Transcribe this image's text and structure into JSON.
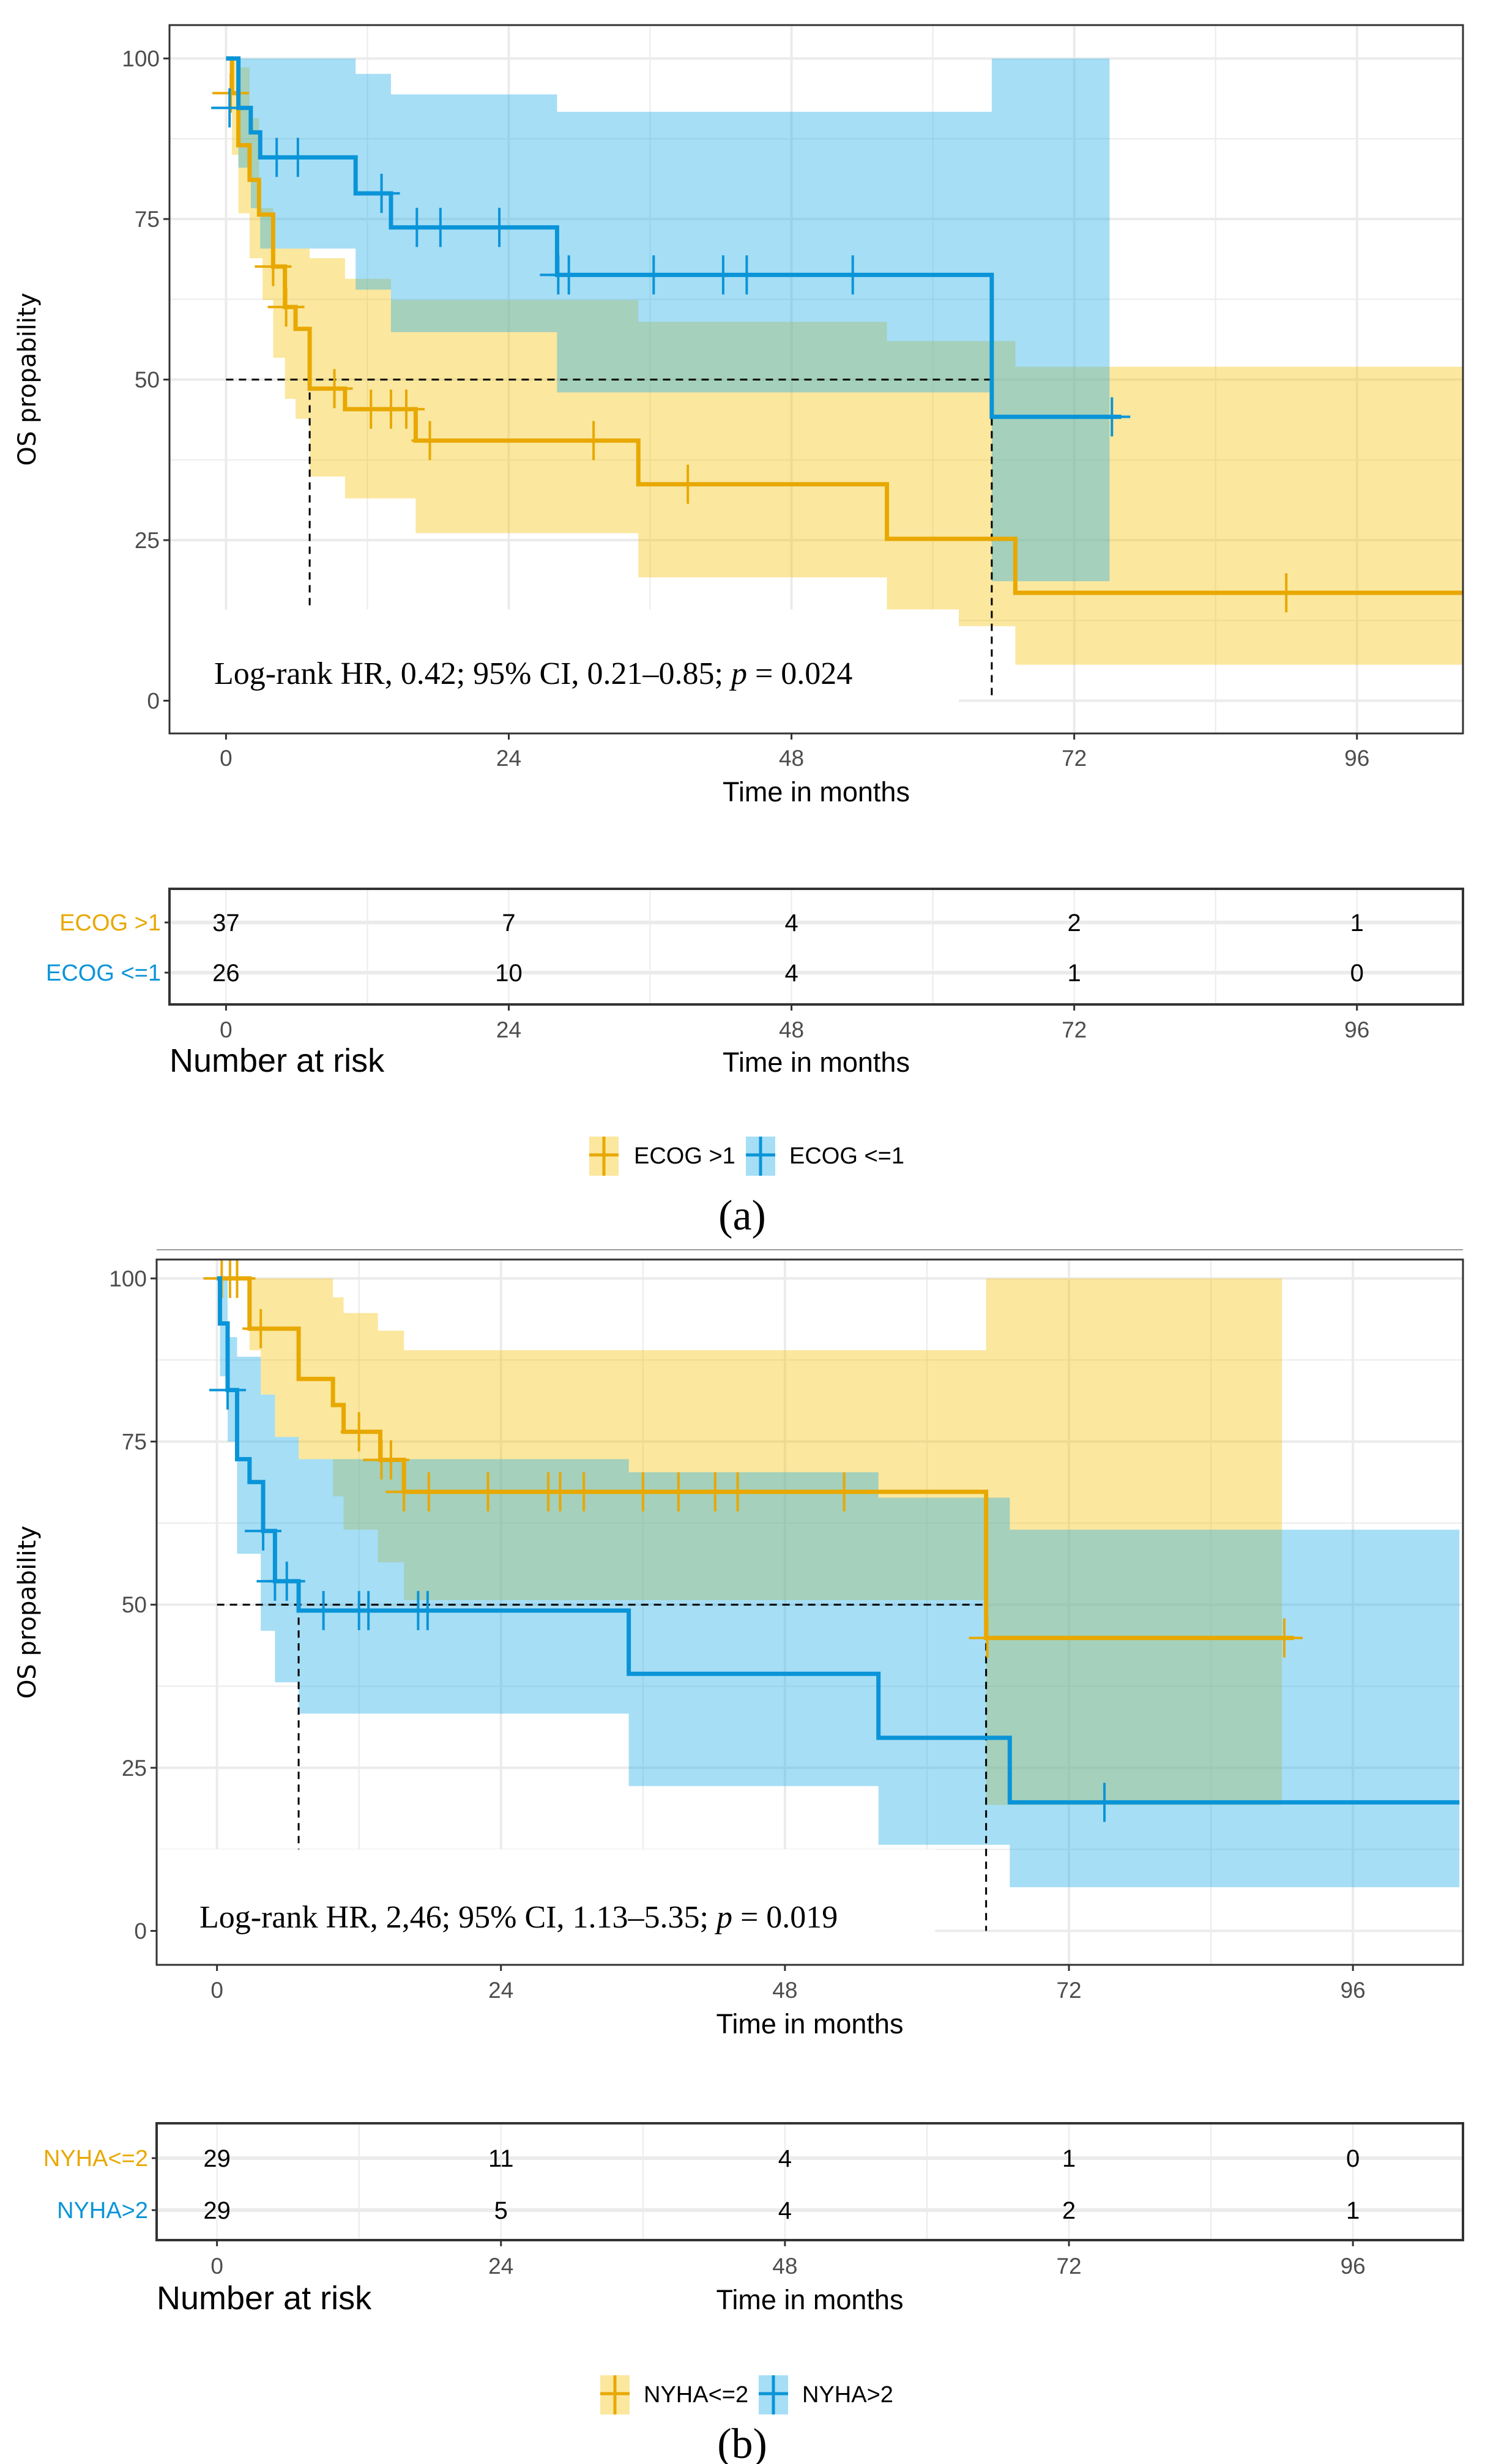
{
  "colors": {
    "orange_line": "#E8A800",
    "orange_fill": "#F5C518",
    "blue_line": "#0A94D8",
    "blue_fill": "#2BB0E8",
    "grid": "#EBEBEB"
  },
  "chart_data": [
    {
      "type": "line",
      "subtype": "kaplan-meier",
      "caption": "(a)",
      "xlabel": "Time in months",
      "ylabel": "OS propability",
      "xlim": [
        -4.8,
        105
      ],
      "ylim": [
        -5.1,
        105.2
      ],
      "xticks": [
        "0",
        "24",
        "48",
        "72",
        "96"
      ],
      "yticks": [
        "0",
        "25",
        "50",
        "75",
        "100"
      ],
      "grid": true,
      "annotation": {
        "pre": "Log-rank HR, 0.42; 95% CI, 0.21–0.85; ",
        "p": "p",
        "post": " = 0.024"
      },
      "medians": [
        7.1,
        65
      ],
      "series": [
        {
          "name": "ECOG >1",
          "color": "orange",
          "steps": [
            [
              0,
              100
            ],
            [
              0.5,
              94.6
            ],
            [
              1.05,
              86.5
            ],
            [
              2.0,
              81.1
            ],
            [
              2.8,
              75.7
            ],
            [
              4.0,
              67.6
            ],
            [
              5.0,
              61.3
            ],
            [
              5.9,
              57.9
            ],
            [
              7.1,
              48.6
            ],
            [
              10.1,
              45.4
            ],
            [
              16.1,
              40.5
            ],
            [
              35,
              33.7
            ],
            [
              56.1,
              25.2
            ],
            [
              67,
              16.8
            ]
          ],
          "end": 105,
          "censors": [
            [
              0.4,
              94.6
            ],
            [
              4.0,
              67.6
            ],
            [
              5.1,
              61.3
            ],
            [
              9.2,
              48.6
            ],
            [
              12.3,
              45.4
            ],
            [
              14,
              45.4
            ],
            [
              15.3,
              45.4
            ],
            [
              17.3,
              40.5
            ],
            [
              31.2,
              40.5
            ],
            [
              39.2,
              33.7
            ],
            [
              90,
              16.8
            ]
          ],
          "ci_upper": [
            [
              0,
              100
            ],
            [
              1.05,
              98.6
            ],
            [
              2.0,
              90.7
            ],
            [
              2.8,
              76.7
            ],
            [
              4.0,
              70.4
            ],
            [
              7.1,
              68.9
            ],
            [
              10.1,
              65.7
            ],
            [
              14,
              62.4
            ],
            [
              35,
              59
            ],
            [
              56.1,
              56
            ],
            [
              67,
              52
            ]
          ],
          "ci_lower": [
            [
              0,
              100
            ],
            [
              0.5,
              85
            ],
            [
              1.05,
              75.9
            ],
            [
              2.0,
              68.9
            ],
            [
              3.1,
              62.4
            ],
            [
              4.0,
              53.4
            ],
            [
              5.0,
              47
            ],
            [
              5.9,
              43.9
            ],
            [
              7.1,
              34.9
            ],
            [
              10.1,
              31.5
            ],
            [
              16.1,
              26.1
            ],
            [
              35,
              19.2
            ],
            [
              56.1,
              14.2
            ],
            [
              62.2,
              11.6
            ],
            [
              67,
              5.6
            ]
          ],
          "ci_end": 105
        },
        {
          "name": "ECOG <=1",
          "color": "blue",
          "steps": [
            [
              0,
              100
            ],
            [
              1.05,
              92.3
            ],
            [
              2.1,
              88.5
            ],
            [
              2.9,
              84.6
            ],
            [
              11,
              79
            ],
            [
              14,
              73.7
            ],
            [
              28.1,
              66.3
            ],
            [
              65,
              44.2
            ]
          ],
          "end": 76,
          "censors": [
            [
              0.3,
              92.3
            ],
            [
              4.3,
              84.6
            ],
            [
              6.1,
              84.6
            ],
            [
              13.2,
              79
            ],
            [
              16.2,
              73.7
            ],
            [
              18.2,
              73.7
            ],
            [
              23.2,
              73.7
            ],
            [
              28.2,
              66.3
            ],
            [
              29.1,
              66.3
            ],
            [
              36.3,
              66.3
            ],
            [
              42.2,
              66.3
            ],
            [
              44.2,
              66.3
            ],
            [
              53.2,
              66.3
            ],
            [
              75.2,
              44.2
            ]
          ],
          "ci_upper": [
            [
              0,
              100
            ],
            [
              11,
              97.6
            ],
            [
              14,
              94.4
            ],
            [
              28.1,
              91.7
            ],
            [
              65,
              100
            ]
          ],
          "ci_lower": [
            [
              0,
              100
            ],
            [
              1.05,
              83
            ],
            [
              2.1,
              76.7
            ],
            [
              2.9,
              70.4
            ],
            [
              11,
              64
            ],
            [
              14,
              57.4
            ],
            [
              28.1,
              48
            ],
            [
              65,
              18.6
            ]
          ],
          "ci_end": 75
        }
      ],
      "risk_table": {
        "title": "Number at risk",
        "times": [
          0,
          24,
          48,
          72,
          96
        ],
        "rows": [
          {
            "label": "ECOG >1",
            "color": "orange",
            "values": [
              "37",
              "7",
              "4",
              "2",
              "1"
            ]
          },
          {
            "label": "ECOG <=1",
            "color": "blue",
            "values": [
              "26",
              "10",
              "4",
              "1",
              "0"
            ]
          }
        ]
      },
      "legend": [
        "ECOG >1",
        "ECOG <=1"
      ]
    },
    {
      "type": "line",
      "subtype": "kaplan-meier",
      "caption": "(b)",
      "xlabel": "Time in months",
      "ylabel": "OS propability",
      "xlim": [
        -5.1,
        105.3
      ],
      "ylim": [
        -5.2,
        102.9
      ],
      "xticks": [
        "0",
        "24",
        "48",
        "72",
        "96"
      ],
      "yticks": [
        "0",
        "25",
        "50",
        "75",
        "100"
      ],
      "grid": true,
      "annotation": {
        "pre": "Log-rank HR, 2,46; 95% CI, 1.13–5.35; ",
        "p": "p",
        "post": " = 0.019"
      },
      "medians": [
        6.9,
        65
      ],
      "series": [
        {
          "name": "NYHA<=2",
          "color": "orange",
          "steps": [
            [
              0,
              100
            ],
            [
              2.75,
              92.3
            ],
            [
              6.9,
              84.6
            ],
            [
              9.8,
              80.6
            ],
            [
              10.7,
              76.5
            ],
            [
              13.8,
              72.2
            ],
            [
              15.8,
              67.3
            ],
            [
              65,
              44.9
            ]
          ],
          "end": 91,
          "censors": [
            [
              0.4,
              100
            ],
            [
              1.1,
              100
            ],
            [
              1.7,
              100
            ],
            [
              3.7,
              92.3
            ],
            [
              12,
              76.5
            ],
            [
              13.9,
              72.2
            ],
            [
              14.7,
              72.2
            ],
            [
              15.8,
              67.3
            ],
            [
              17.9,
              67.3
            ],
            [
              22.9,
              67.3
            ],
            [
              28,
              67.3
            ],
            [
              29,
              67.3
            ],
            [
              31,
              67.3
            ],
            [
              36,
              67.3
            ],
            [
              39,
              67.3
            ],
            [
              42.1,
              67.3
            ],
            [
              44,
              67.3
            ],
            [
              53,
              67.3
            ],
            [
              65.1,
              44.9
            ],
            [
              90.2,
              44.9
            ]
          ],
          "ci_upper": [
            [
              0,
              100
            ],
            [
              9.8,
              97.1
            ],
            [
              10.7,
              94.7
            ],
            [
              13.6,
              92
            ],
            [
              15.8,
              89
            ],
            [
              65,
              100
            ]
          ],
          "ci_lower": [
            [
              0,
              100
            ],
            [
              2.75,
              89
            ],
            [
              3.7,
              82.2
            ],
            [
              4.9,
              75.7
            ],
            [
              6.9,
              72.3
            ],
            [
              9.8,
              66.6
            ],
            [
              10.7,
              61.5
            ],
            [
              13.6,
              56.5
            ],
            [
              15.8,
              50.7
            ],
            [
              65,
              19.3
            ]
          ],
          "ci_end": 90
        },
        {
          "name": "NYHA>2",
          "color": "blue",
          "steps": [
            [
              0,
              100
            ],
            [
              0.25,
              93.1
            ],
            [
              0.9,
              82.9
            ],
            [
              1.7,
              72.3
            ],
            [
              2.75,
              68.8
            ],
            [
              3.9,
              61.3
            ],
            [
              4.9,
              53.6
            ],
            [
              6.9,
              49.1
            ],
            [
              34.8,
              39.4
            ],
            [
              55.9,
              29.6
            ],
            [
              67,
              19.7
            ]
          ],
          "end": 105,
          "censors": [
            [
              0.9,
              82.9
            ],
            [
              3.9,
              61.3
            ],
            [
              4.9,
              53.6
            ],
            [
              5.9,
              53.6
            ],
            [
              9,
              49.1
            ],
            [
              12,
              49.1
            ],
            [
              12.8,
              49.1
            ],
            [
              17,
              49.1
            ],
            [
              17.8,
              49.1
            ],
            [
              75,
              19.7
            ]
          ],
          "ci_upper": [
            [
              0,
              100
            ],
            [
              0.9,
              91
            ],
            [
              1.7,
              88
            ],
            [
              3.7,
              82.2
            ],
            [
              4.9,
              75.7
            ],
            [
              6.9,
              72.3
            ],
            [
              34.8,
              70.3
            ],
            [
              55.9,
              66.4
            ],
            [
              67,
              61.5
            ]
          ],
          "ci_lower": [
            [
              0,
              100
            ],
            [
              0.25,
              85
            ],
            [
              0.9,
              75
            ],
            [
              1.7,
              57.8
            ],
            [
              3.7,
              46
            ],
            [
              4.9,
              38.1
            ],
            [
              6.9,
              33.3
            ],
            [
              34.8,
              22.2
            ],
            [
              55.9,
              13.2
            ],
            [
              67,
              6.7
            ]
          ],
          "ci_end": 105
        }
      ],
      "risk_table": {
        "title": "Number at risk",
        "times": [
          0,
          24,
          48,
          72,
          96
        ],
        "rows": [
          {
            "label": "NYHA<=2",
            "color": "orange",
            "values": [
              "29",
              "11",
              "4",
              "1",
              "0"
            ]
          },
          {
            "label": "NYHA>2",
            "color": "blue",
            "values": [
              "29",
              "5",
              "4",
              "2",
              "1"
            ]
          }
        ]
      },
      "legend": [
        "NYHA<=2",
        "NYHA>2"
      ]
    }
  ]
}
